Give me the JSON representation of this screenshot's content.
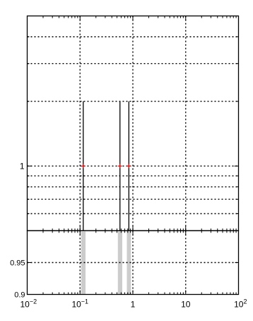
{
  "chart_data": [
    {
      "type": "line",
      "panel": "top",
      "title": "",
      "xlabel": "",
      "ylabel": "",
      "x_scale": "log",
      "xlim": [
        0.01,
        100
      ],
      "y_scale": "log",
      "ylim": [
        0.5,
        5.0
      ],
      "y_tick_labels": [
        {
          "value": 1,
          "label": "1"
        }
      ],
      "y_gridlines": [
        0.6,
        0.7,
        0.8,
        0.9,
        1,
        2,
        3,
        4
      ],
      "x_gridlines": [
        0.1,
        1,
        10
      ],
      "grid": true,
      "series": [
        {
          "kind": "stems",
          "color": "#000000",
          "points": [
            {
              "x": 0.115,
              "y": 2
            },
            {
              "x": 0.57,
              "y": 2
            },
            {
              "x": 0.84,
              "y": 2
            }
          ]
        },
        {
          "kind": "markers",
          "marker": "+",
          "color": "#ff0000",
          "points": [
            {
              "x": 0.115,
              "y": 1
            },
            {
              "x": 0.57,
              "y": 1
            },
            {
              "x": 0.84,
              "y": 1
            }
          ]
        }
      ]
    },
    {
      "type": "bar",
      "panel": "bottom",
      "title": "",
      "xlabel": "",
      "ylabel": "",
      "x_scale": "log",
      "xlim": [
        0.01,
        100
      ],
      "ylim": [
        0.9,
        1.0
      ],
      "x_tick_labels": [
        {
          "value": 0.01,
          "label": "10",
          "exp": "−2"
        },
        {
          "value": 0.1,
          "label": "10",
          "exp": "−1"
        },
        {
          "value": 1,
          "label": "1",
          "exp": ""
        },
        {
          "value": 10,
          "label": "10",
          "exp": ""
        },
        {
          "value": 100,
          "label": "10",
          "exp": "2"
        }
      ],
      "y_tick_labels": [
        {
          "value": 0.9,
          "label": "0.9"
        },
        {
          "value": 0.95,
          "label": "0.95"
        },
        {
          "value": 1.0,
          "label": "1"
        }
      ],
      "x_gridlines": [
        0.1,
        1,
        10
      ],
      "y_gridlines": [
        0.95
      ],
      "grid": true,
      "color": "#cccccc",
      "bands": [
        {
          "x_from": 0.105,
          "x_to": 0.127,
          "y": 1.0
        },
        {
          "x_from": 0.52,
          "x_to": 0.63,
          "y": 1.0
        },
        {
          "x_from": 0.77,
          "x_to": 0.92,
          "y": 1.0
        }
      ]
    }
  ]
}
